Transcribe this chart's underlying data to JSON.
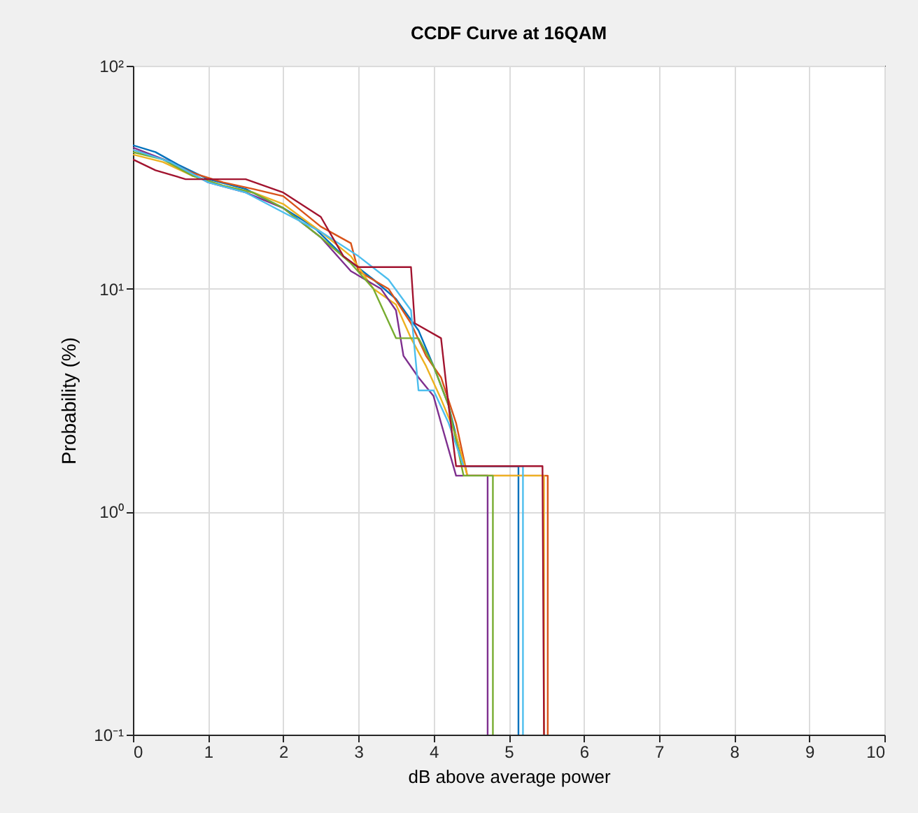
{
  "chart_data": {
    "type": "line",
    "title": "CCDF Curve at 16QAM",
    "xlabel": "dB above average power",
    "ylabel": "Probability (%)",
    "log": "y",
    "grid": true,
    "xlim": [
      0,
      10
    ],
    "xticks": [
      0,
      1,
      2,
      3,
      4,
      5,
      6,
      7,
      8,
      9,
      10
    ],
    "ylim": [
      0.1,
      100
    ],
    "yticks": [
      {
        "value": 0.1,
        "label": "10⁻¹"
      },
      {
        "value": 1,
        "label": "10⁰"
      },
      {
        "value": 10,
        "label": "10¹"
      },
      {
        "value": 100,
        "label": "10²"
      }
    ],
    "series": [
      {
        "color": "#0072bd",
        "x": [
          0,
          0.3,
          0.6,
          1,
          1.5,
          2,
          2.4,
          2.8,
          3.2,
          3.5,
          3.8,
          4.0,
          4.2,
          4.4,
          5.13,
          5.13
        ],
        "values": [
          44,
          41,
          36,
          31,
          28,
          23,
          19,
          14,
          11,
          9,
          6.5,
          4.5,
          3,
          1.6,
          1.6,
          0.1
        ]
      },
      {
        "color": "#d95319",
        "x": [
          0,
          0.4,
          0.8,
          1.2,
          1.6,
          2.0,
          2.5,
          2.9,
          3.0,
          3.4,
          3.7,
          3.9,
          4.1,
          4.3,
          4.45,
          5.52,
          5.52
        ],
        "values": [
          42,
          38,
          33,
          30,
          28,
          26,
          19,
          16,
          12,
          10,
          7,
          5,
          4,
          2.5,
          1.45,
          1.45,
          0.1
        ]
      },
      {
        "color": "#edb120",
        "x": [
          0,
          0.4,
          0.8,
          1.2,
          1.6,
          2.0,
          2.5,
          2.9,
          3.2,
          3.5,
          3.7,
          3.9,
          4.1,
          4.3,
          4.45,
          5.47,
          5.47
        ],
        "values": [
          40,
          37,
          32,
          29,
          27,
          24,
          18,
          14,
          10,
          8.5,
          6,
          4.5,
          3.2,
          2.2,
          1.45,
          1.45,
          0.1
        ]
      },
      {
        "color": "#7e2f8e",
        "x": [
          0,
          0.5,
          1,
          1.5,
          2,
          2.5,
          2.9,
          3.3,
          3.5,
          3.6,
          3.8,
          4.0,
          4.1,
          4.3,
          4.72,
          4.72
        ],
        "values": [
          43,
          37,
          30,
          27,
          23,
          17,
          12,
          10,
          8,
          5,
          4,
          3.3,
          2.5,
          1.45,
          1.45,
          0.1
        ]
      },
      {
        "color": "#77ac30",
        "x": [
          0,
          0.4,
          0.8,
          1.2,
          1.6,
          2.0,
          2.5,
          2.9,
          3.2,
          3.5,
          3.8,
          4.0,
          4.2,
          4.4,
          4.79,
          4.79
        ],
        "values": [
          41,
          38,
          32,
          29,
          27,
          23,
          17,
          13,
          10,
          6,
          6,
          4.5,
          3,
          1.45,
          1.45,
          0.1
        ]
      },
      {
        "color": "#4dbeee",
        "x": [
          0,
          0.5,
          1,
          1.5,
          2,
          2.5,
          3,
          3.4,
          3.7,
          3.8,
          4.0,
          4.2,
          4.4,
          5.19,
          5.19
        ],
        "values": [
          42,
          37,
          30,
          27,
          22,
          18,
          14,
          11,
          8,
          3.5,
          3.5,
          2.5,
          1.6,
          1.6,
          0.1
        ]
      },
      {
        "color": "#a2142f",
        "x": [
          0,
          0.3,
          0.7,
          1.5,
          2.0,
          2.5,
          2.8,
          3.0,
          3.7,
          3.75,
          4.1,
          4.2,
          4.3,
          5.45,
          5.47
        ],
        "values": [
          38,
          34,
          31,
          31,
          27,
          21,
          14,
          12.5,
          12.5,
          7,
          6,
          3,
          1.6,
          1.6,
          0.1
        ]
      }
    ]
  }
}
